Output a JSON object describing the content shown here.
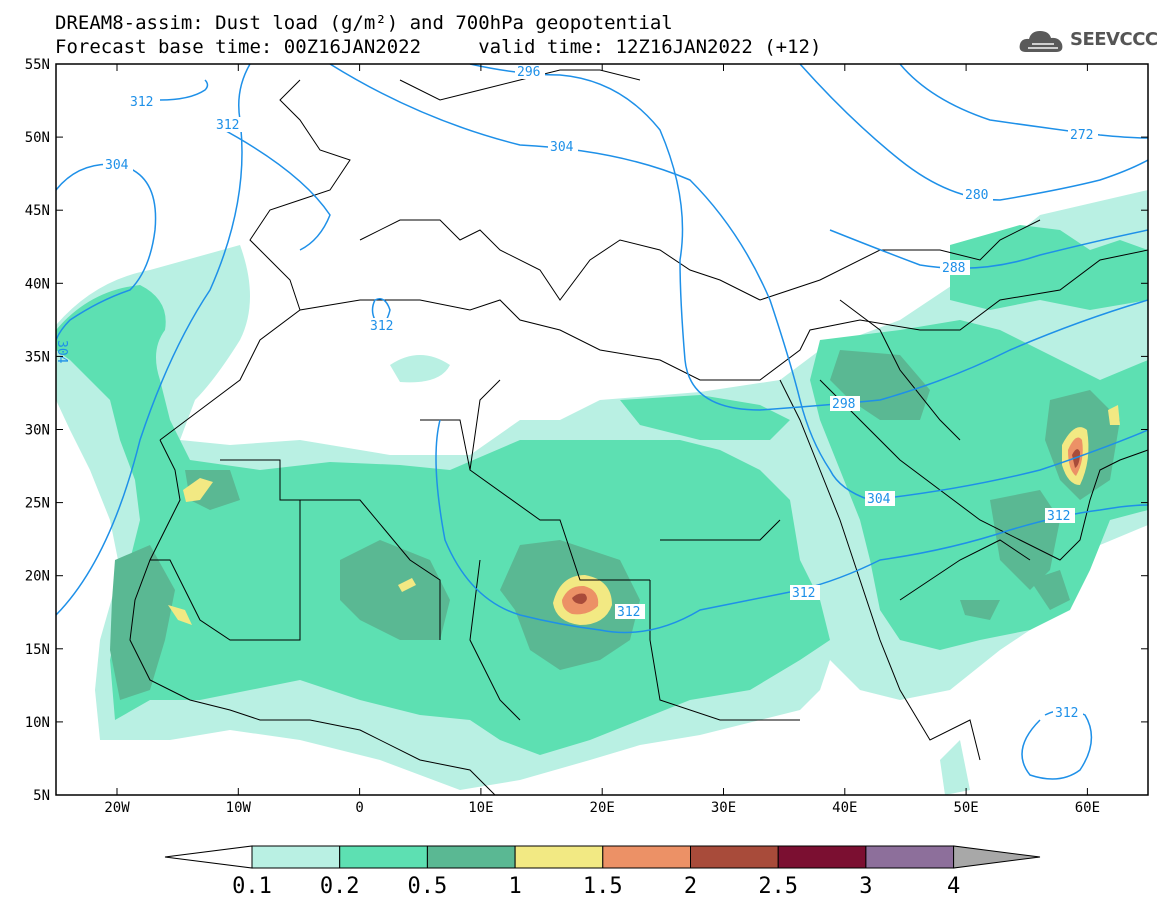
{
  "header": {
    "title_line1": "DREAM8-assim: Dust load (g/m²) and 700hPa geopotential",
    "title_line2": "Forecast base time: 00Z16JAN2022     valid time: 12Z16JAN2022 (+12)"
  },
  "logo": {
    "text": "SEEVCCC",
    "icon": "cloud-icon"
  },
  "map": {
    "lat_labels": [
      "55N",
      "50N",
      "45N",
      "40N",
      "35N",
      "30N",
      "25N",
      "20N",
      "15N",
      "10N",
      "5N"
    ],
    "lon_labels": [
      "20W",
      "10W",
      "0",
      "10E",
      "20E",
      "30E",
      "40E",
      "50E",
      "60E"
    ],
    "contour_labels": [
      "296",
      "312",
      "312",
      "304",
      "304",
      "272",
      "280",
      "288",
      "298",
      "304",
      "312",
      "312",
      "312",
      "312",
      "304"
    ]
  },
  "colorbar": {
    "labels": [
      "0.1",
      "0.2",
      "0.5",
      "1",
      "1.5",
      "2",
      "2.5",
      "3",
      "4"
    ],
    "colors": [
      "#b9f0e3",
      "#5de0b2",
      "#5ab893",
      "#f2e983",
      "#ec9166",
      "#a84b3a",
      "#7b0f31",
      "#8d6f9b"
    ],
    "under_color": "#ffffff",
    "over_color": "#a8a8a8"
  }
}
